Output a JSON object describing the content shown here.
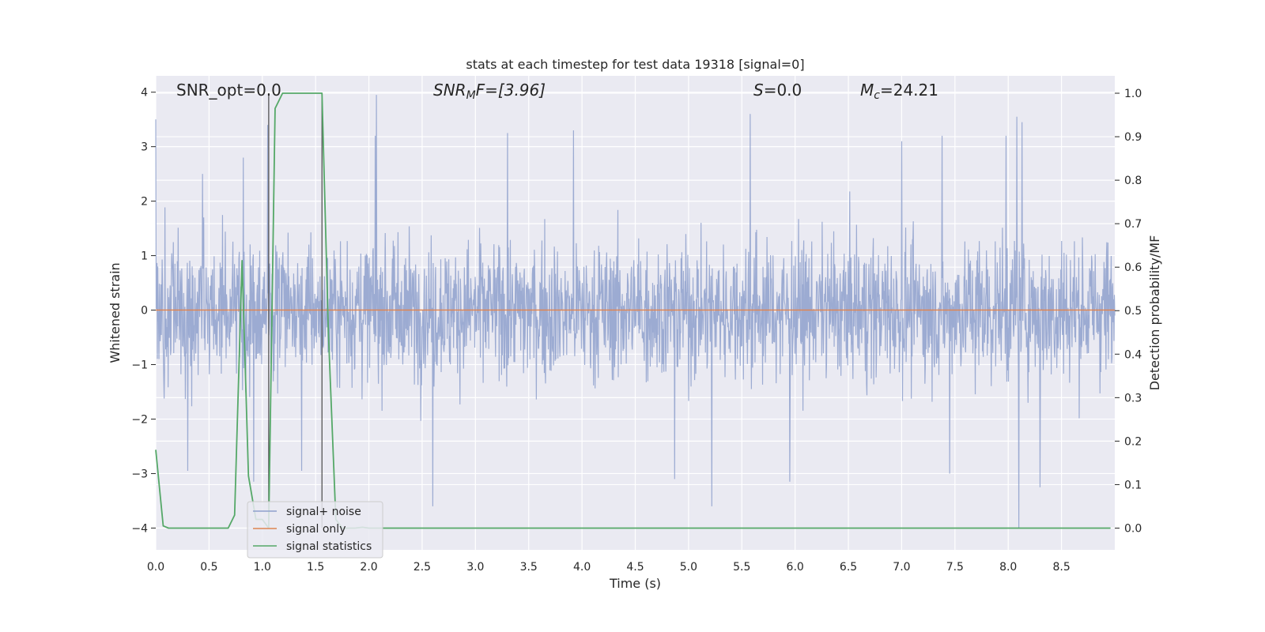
{
  "chart_data": {
    "type": "line",
    "title": "stats at each timestep for test data 19318 [signal=0]",
    "xlabel": "Time (s)",
    "ylabel": "Whitened strain",
    "y2label": "Detection probability/MF",
    "xlim": [
      0,
      9.0
    ],
    "ylim": [
      -4.4,
      4.3
    ],
    "y2lim": [
      -0.05,
      1.04
    ],
    "x_ticks": [
      "0.0",
      "0.5",
      "1.0",
      "1.5",
      "2.0",
      "2.5",
      "3.0",
      "3.5",
      "4.0",
      "4.5",
      "5.0",
      "5.5",
      "6.0",
      "6.5",
      "7.0",
      "7.5",
      "8.0",
      "8.5"
    ],
    "y_ticks": [
      "4",
      "3",
      "2",
      "1",
      "0",
      "−1",
      "−2",
      "−3",
      "−4"
    ],
    "y2_ticks": [
      "1.0",
      "0.9",
      "0.8",
      "0.7",
      "0.6",
      "0.5",
      "0.4",
      "0.3",
      "0.2",
      "0.1",
      "0.0"
    ],
    "grid": true,
    "legend_placement": "lower-left",
    "annotations": {
      "snr_opt": "SNR_opt=0.0",
      "snr_mf_main": "SNR",
      "snr_mf_sub": "M",
      "snr_mf_rest": "F=[3.96]",
      "s_main": "S",
      "s_rest": "=0.0",
      "mc_main": "M",
      "mc_sub": "c",
      "mc_rest": "=24.21"
    },
    "vertical_markers": [
      1.06,
      1.56
    ],
    "series": [
      {
        "name": "signal+ noise",
        "color": "#8ea0cc",
        "axis": "left",
        "description_envelope": {
          "typical_high": 1.6,
          "typical_low": -1.6,
          "peaks": [
            {
              "x": 0.0,
              "y": 3.5
            },
            {
              "x": 0.44,
              "y": 2.5
            },
            {
              "x": 0.82,
              "y": 2.8
            },
            {
              "x": 1.05,
              "y": 3.4
            },
            {
              "x": 2.07,
              "y": 3.95
            },
            {
              "x": 2.06,
              "y": 3.2
            },
            {
              "x": 3.3,
              "y": 3.25
            },
            {
              "x": 3.92,
              "y": 3.3
            },
            {
              "x": 5.58,
              "y": 3.6
            },
            {
              "x": 7.0,
              "y": 3.1
            },
            {
              "x": 7.38,
              "y": 3.2
            },
            {
              "x": 7.98,
              "y": 3.2
            },
            {
              "x": 8.08,
              "y": 3.55
            },
            {
              "x": 8.13,
              "y": 3.45
            }
          ],
          "troughs": [
            {
              "x": 0.3,
              "y": -2.95
            },
            {
              "x": 0.92,
              "y": -3.15
            },
            {
              "x": 1.37,
              "y": -2.95
            },
            {
              "x": 2.6,
              "y": -3.6
            },
            {
              "x": 4.87,
              "y": -3.1
            },
            {
              "x": 5.22,
              "y": -3.6
            },
            {
              "x": 5.95,
              "y": -3.15
            },
            {
              "x": 7.45,
              "y": -3.0
            },
            {
              "x": 8.1,
              "y": -4.0
            },
            {
              "x": 8.3,
              "y": -3.25
            }
          ]
        }
      },
      {
        "name": "signal only",
        "color": "#dd8452",
        "axis": "left",
        "x": [
          0,
          9.0
        ],
        "y": [
          0,
          0
        ]
      },
      {
        "name": "signal statistics",
        "color": "#55a868",
        "axis": "right",
        "x": [
          0.0,
          0.07,
          0.12,
          0.68,
          0.74,
          0.81,
          0.87,
          0.94,
          1.0,
          1.06,
          1.12,
          1.19,
          1.25,
          1.56,
          1.62,
          1.69,
          1.75,
          1.81,
          1.87,
          1.94,
          2.0,
          8.96
        ],
        "y": [
          0.18,
          0.005,
          0.0,
          0.0,
          0.03,
          0.615,
          0.12,
          0.02,
          0.02,
          0.0,
          0.965,
          1.0,
          1.0,
          1.0,
          0.45,
          0.02,
          0.0,
          0.0,
          0.0,
          0.002,
          0.0,
          0.0
        ]
      }
    ]
  }
}
